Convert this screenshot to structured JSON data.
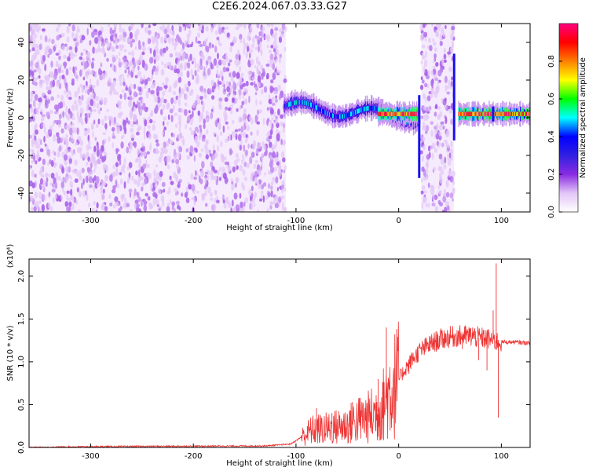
{
  "title": "C2E6.2024.067.03.33.G27",
  "chart_data": [
    {
      "type": "heatmap",
      "xlabel": "Height of straight line (km)",
      "ylabel": "Frequency (Hz)",
      "xlim": [
        -360,
        128
      ],
      "ylim": [
        -50,
        50
      ],
      "x_ticks": [
        -300,
        -200,
        -100,
        0,
        100
      ],
      "x_tick_labels": [
        "-300",
        "-200",
        "-100",
        "0",
        "100"
      ],
      "y_ticks": [
        -40,
        -20,
        0,
        20,
        40
      ],
      "y_tick_labels": [
        "-40",
        "-20",
        "0",
        "20",
        "40"
      ],
      "colorbar": {
        "label": "Normalized spectral amplitude",
        "range": [
          0.0,
          1.0
        ],
        "ticks": [
          0.0,
          0.2,
          0.4,
          0.6,
          0.8
        ],
        "tick_labels": [
          "0.0",
          "0.2",
          "0.4",
          "0.6",
          "0.8"
        ],
        "colormap": [
          "#ffffff",
          "#e2c6f7",
          "#8a2be2",
          "#3020e0",
          "#0000ff",
          "#00ffff",
          "#00ff00",
          "#ffff00",
          "#ff7f00",
          "#ff0000",
          "#ff0080"
        ]
      },
      "regions": [
        {
          "name": "broadband-noise",
          "x": [
            -360,
            -110
          ],
          "freq": [
            -50,
            50
          ],
          "amplitude": 0.1
        },
        {
          "name": "narrow-band-signal",
          "x": [
            -112,
            20
          ],
          "freq_center": [
            6,
            0
          ],
          "amplitude": 0.45
        },
        {
          "name": "peak-band",
          "x": [
            -20,
            20
          ],
          "freq_center": 2,
          "amplitude": 0.9
        },
        {
          "name": "noise-gap",
          "x": [
            22,
            54
          ],
          "freq": [
            -50,
            50
          ],
          "amplitude": 0.1
        },
        {
          "name": "steady-signal",
          "x": [
            58,
            128
          ],
          "freq_center": 2,
          "amplitude": 0.92
        }
      ]
    },
    {
      "type": "line",
      "xlabel": "Height of straight line (km)",
      "ylabel": "SNR (10 * v/v)",
      "y_multiplier": "(x10⁴)",
      "xlim": [
        -360,
        128
      ],
      "ylim": [
        0,
        22000
      ],
      "x_ticks": [
        -300,
        -200,
        -100,
        0,
        100
      ],
      "x_tick_labels": [
        "-300",
        "-200",
        "-100",
        "0",
        "100"
      ],
      "y_ticks": [
        0,
        5000,
        10000,
        15000,
        20000
      ],
      "y_tick_labels": [
        "0.0",
        "0.5",
        "1.0",
        "1.5",
        "2.0"
      ],
      "color": "#ee3333",
      "series": [
        {
          "x": [
            -360,
            -300,
            -200,
            -130,
            -105,
            -95,
            -85,
            -70,
            -50,
            -40,
            -30,
            -20,
            -15,
            -10,
            0,
            10,
            20,
            30,
            40,
            50,
            60,
            70,
            80,
            90,
            95,
            100,
            110,
            128
          ],
          "values": [
            0,
            100,
            150,
            180,
            400,
            1200,
            2000,
            2200,
            2600,
            3200,
            3500,
            4200,
            5000,
            6300,
            8000,
            9800,
            11200,
            12000,
            12600,
            12900,
            13000,
            13000,
            12800,
            12600,
            12400,
            12300,
            12300,
            12200
          ],
          "spikes": [
            [
              -80,
              4600
            ],
            [
              -65,
              4000
            ],
            [
              -45,
              5300
            ],
            [
              -20,
              8000
            ],
            [
              -12,
              14000
            ],
            [
              10,
              8600
            ],
            [
              62,
              11500
            ],
            [
              72,
              14000
            ],
            [
              78,
              10200
            ],
            [
              86,
              9000
            ],
            [
              92,
              16000
            ],
            [
              95,
              21500
            ],
            [
              97,
              3500
            ]
          ]
        }
      ]
    }
  ]
}
